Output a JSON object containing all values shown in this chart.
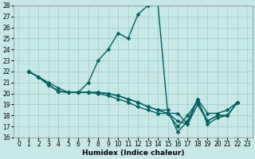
{
  "xlabel": "Humidex (Indice chaleur)",
  "xlim_left": -0.5,
  "xlim_right": 23.5,
  "ylim_bottom": 16,
  "ylim_top": 28,
  "xticks": [
    0,
    1,
    2,
    3,
    4,
    5,
    6,
    7,
    8,
    9,
    10,
    11,
    12,
    13,
    14,
    15,
    16,
    17,
    18,
    19,
    20,
    21,
    22,
    23
  ],
  "yticks": [
    16,
    17,
    18,
    19,
    20,
    21,
    22,
    23,
    24,
    25,
    26,
    27,
    28
  ],
  "bg_color": "#c8e8e8",
  "grid_color": "#a0c8c8",
  "line_color": "#006060",
  "lines": [
    [
      22.0,
      21.5,
      21.0,
      20.5,
      20.1,
      20.1,
      21.0,
      23.0,
      24.0,
      25.5,
      25.0,
      27.2,
      28.0,
      28.2,
      18.2,
      18.2,
      17.2,
      19.5,
      18.2,
      18.2,
      18.5,
      19.2
    ],
    [
      22.0,
      21.5,
      20.8,
      20.2,
      20.1,
      20.1,
      20.1,
      20.1,
      20.0,
      19.8,
      19.5,
      19.2,
      18.8,
      18.5,
      18.2,
      17.0,
      18.0,
      19.3,
      17.5,
      18.0,
      18.0,
      19.2
    ],
    [
      22.0,
      21.5,
      20.8,
      20.2,
      20.1,
      20.1,
      20.1,
      20.1,
      20.0,
      19.8,
      19.5,
      19.2,
      18.8,
      18.5,
      18.5,
      16.5,
      17.5,
      19.5,
      17.2,
      17.8,
      18.0,
      19.2
    ],
    [
      22.0,
      21.5,
      20.8,
      20.2,
      20.1,
      20.1,
      20.1,
      20.0,
      19.8,
      19.5,
      19.2,
      18.8,
      18.5,
      18.2,
      18.2,
      17.5,
      17.2,
      19.0,
      17.5,
      18.0,
      18.0,
      19.2
    ]
  ],
  "linewidth": 1.0,
  "markersize": 2.5,
  "tick_fontsize": 5.5,
  "xlabel_fontsize": 6.5,
  "figwidth": 3.2,
  "figheight": 2.0,
  "dpi": 100
}
